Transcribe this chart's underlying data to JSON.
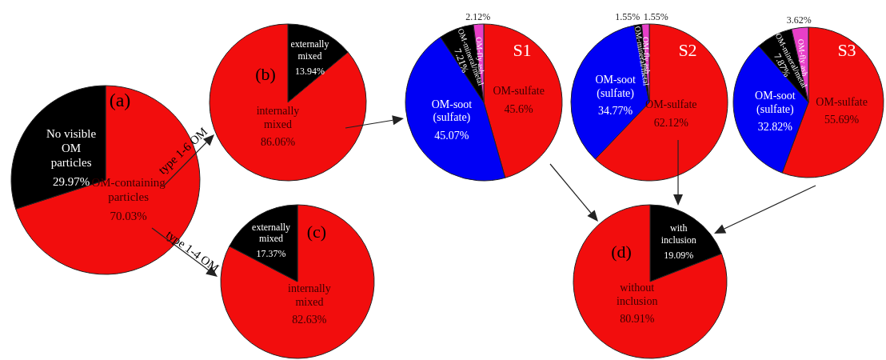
{
  "chart_data": [
    {
      "type": "pie",
      "title": "(a)",
      "categories": [
        "OM-containing particles",
        "No visible OM particles"
      ],
      "values": [
        70.03,
        29.97
      ],
      "colors": [
        "#f20d0d",
        "#000000"
      ],
      "value_labels": [
        "70.03%",
        "29.97%"
      ],
      "annotations": [
        "type 1-6 OM",
        "type 1-4 OM"
      ]
    },
    {
      "type": "pie",
      "title": "(b)",
      "categories": [
        "externally mixed",
        "internally mixed"
      ],
      "values": [
        13.94,
        86.06
      ],
      "colors": [
        "#000000",
        "#f20d0d"
      ],
      "value_labels": [
        "13.94%",
        "86.06%"
      ]
    },
    {
      "type": "pie",
      "title": "(c)",
      "categories": [
        "internally mixed",
        "externally mixed"
      ],
      "values": [
        82.63,
        17.37
      ],
      "colors": [
        "#f20d0d",
        "#000000"
      ],
      "value_labels": [
        "82.63%",
        "17.37%"
      ]
    },
    {
      "type": "pie",
      "title": "S1",
      "categories": [
        "OM-sulfate",
        "OM-soot (sulfate)",
        "OM-mineral/metal",
        "OM-fly ash"
      ],
      "values": [
        45.6,
        45.07,
        7.21,
        2.12
      ],
      "colors": [
        "#f20d0d",
        "#0000f5",
        "#000000",
        "#e83fc8"
      ],
      "value_labels": [
        "45.6%",
        "45.07%",
        "7.21%",
        "2.12%"
      ]
    },
    {
      "type": "pie",
      "title": "S2",
      "categories": [
        "OM-sulfate",
        "OM-soot (sulfate)",
        "OM-mineral/metal",
        "OM-fly ash"
      ],
      "values": [
        62.12,
        34.77,
        1.55,
        1.55
      ],
      "colors": [
        "#f20d0d",
        "#0000f5",
        "#000000",
        "#e83fc8"
      ],
      "value_labels": [
        "62.12%",
        "34.77%",
        "1.55%",
        "1.55%"
      ]
    },
    {
      "type": "pie",
      "title": "S3",
      "categories": [
        "OM-sulfate",
        "OM-soot (sulfate)",
        "OM-mineral/metal",
        "OM-fly ash"
      ],
      "values": [
        55.69,
        32.82,
        7.87,
        3.62
      ],
      "colors": [
        "#f20d0d",
        "#0000f5",
        "#000000",
        "#e83fc8"
      ],
      "value_labels": [
        "55.69%",
        "32.82%",
        "7.87%",
        "3.62%"
      ]
    },
    {
      "type": "pie",
      "title": "(d)",
      "categories": [
        "with inclusion",
        "without inclusion"
      ],
      "values": [
        19.09,
        80.91
      ],
      "colors": [
        "#000000",
        "#f20d0d"
      ],
      "value_labels": [
        "19.09%",
        "80.91%"
      ]
    }
  ]
}
